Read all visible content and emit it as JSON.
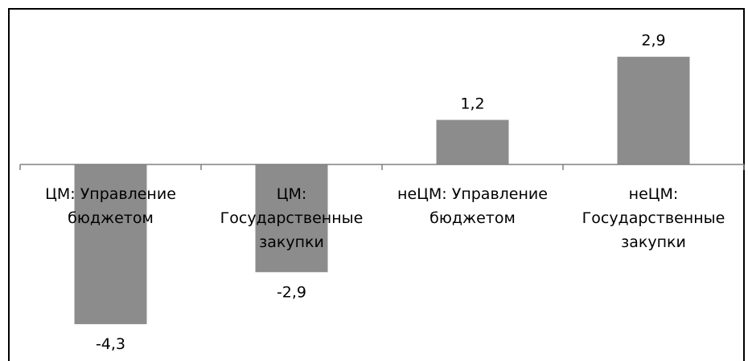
{
  "chart_data": {
    "type": "bar",
    "categories": [
      [
        "ЦМ: Управление",
        "бюджетом"
      ],
      [
        "ЦМ:",
        "Государственные",
        "закупки"
      ],
      [
        "неЦМ: Управление",
        "бюджетом"
      ],
      [
        "неЦМ:",
        "Государственные",
        "закупки"
      ]
    ],
    "values": [
      -4.3,
      -2.9,
      1.2,
      2.9
    ],
    "value_labels": [
      "-4,3",
      "-2,9",
      "1,2",
      "2,9"
    ],
    "title": "",
    "xlabel": "",
    "ylabel": "",
    "ylim": [
      -4.3,
      2.9
    ],
    "grid": false,
    "legend": "none",
    "bar_color": "#8c8c8c",
    "axis_color": "#808080"
  }
}
